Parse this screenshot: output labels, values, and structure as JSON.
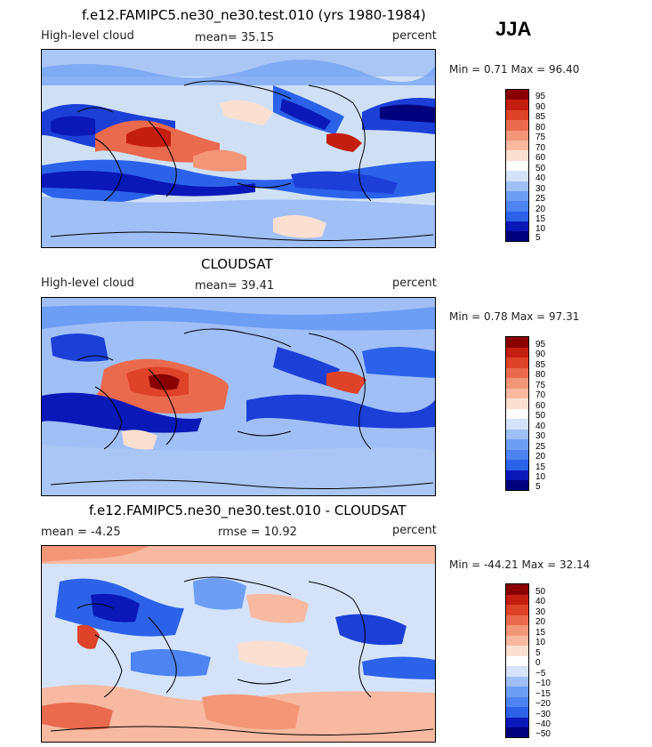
{
  "season": "JJA",
  "panels": [
    {
      "title": "f.e12.FAMIPC5.ne30_ne30.test.010 (yrs 1980-1984)",
      "left_label": "High-level cloud",
      "center_label": "mean=  35.15",
      "right_label": "percent",
      "minmax": "Min =   0.71 Max =  96.40",
      "colorbar_labels": [
        "95",
        "90",
        "85",
        "80",
        "75",
        "70",
        "60",
        "50",
        "40",
        "30",
        "25",
        "20",
        "15",
        "10",
        "5"
      ]
    },
    {
      "title": "CLOUDSAT",
      "left_label": "High-level cloud",
      "center_label": "mean=  39.41",
      "right_label": "percent",
      "minmax": "Min =   0.78 Max =  97.31",
      "colorbar_labels": [
        "95",
        "90",
        "85",
        "80",
        "75",
        "70",
        "60",
        "50",
        "40",
        "30",
        "25",
        "20",
        "15",
        "10",
        "5"
      ]
    },
    {
      "title": "f.e12.FAMIPC5.ne30_ne30.test.010 - CLOUDSAT",
      "left_label": "mean =  -4.25",
      "center_label": "rmse =   10.92",
      "right_label": "percent",
      "minmax": "Min = -44.21 Max =  32.14",
      "colorbar_labels": [
        "50",
        "40",
        "30",
        "20",
        "15",
        "10",
        "5",
        "0",
        "−5",
        "−10",
        "−15",
        "−20",
        "−30",
        "−40",
        "−50"
      ]
    }
  ],
  "chart_data": [
    {
      "type": "heatmap",
      "title": "f.e12.FAMIPC5.ne30_ne30.test.010 (yrs 1980-1984)",
      "field": "High-level cloud",
      "units": "percent",
      "season": "JJA",
      "mean": 35.15,
      "min": 0.71,
      "max": 96.4,
      "contour_levels": [
        5,
        10,
        15,
        20,
        25,
        30,
        40,
        50,
        60,
        70,
        75,
        80,
        85,
        90,
        95
      ]
    },
    {
      "type": "heatmap",
      "title": "CLOUDSAT",
      "field": "High-level cloud",
      "units": "percent",
      "season": "JJA",
      "mean": 39.41,
      "min": 0.78,
      "max": 97.31,
      "contour_levels": [
        5,
        10,
        15,
        20,
        25,
        30,
        40,
        50,
        60,
        70,
        75,
        80,
        85,
        90,
        95
      ]
    },
    {
      "type": "heatmap",
      "title": "f.e12.FAMIPC5.ne30_ne30.test.010 - CLOUDSAT",
      "units": "percent",
      "season": "JJA",
      "mean": -4.25,
      "rmse": 10.92,
      "min": -44.21,
      "max": 32.14,
      "contour_levels": [
        -50,
        -40,
        -30,
        -20,
        -15,
        -10,
        -5,
        0,
        5,
        10,
        15,
        20,
        30,
        40,
        50
      ]
    }
  ],
  "colors": {
    "scale": [
      "#00007e",
      "#0a18b8",
      "#1c3fd8",
      "#2c62ea",
      "#4d84f2",
      "#6e9ef4",
      "#a0bff6",
      "#d4e3fa",
      "#fbe0d2",
      "#f7b9a0",
      "#f39678",
      "#ea6a4e",
      "#de4228",
      "#c41e10",
      "#8a0000"
    ]
  }
}
